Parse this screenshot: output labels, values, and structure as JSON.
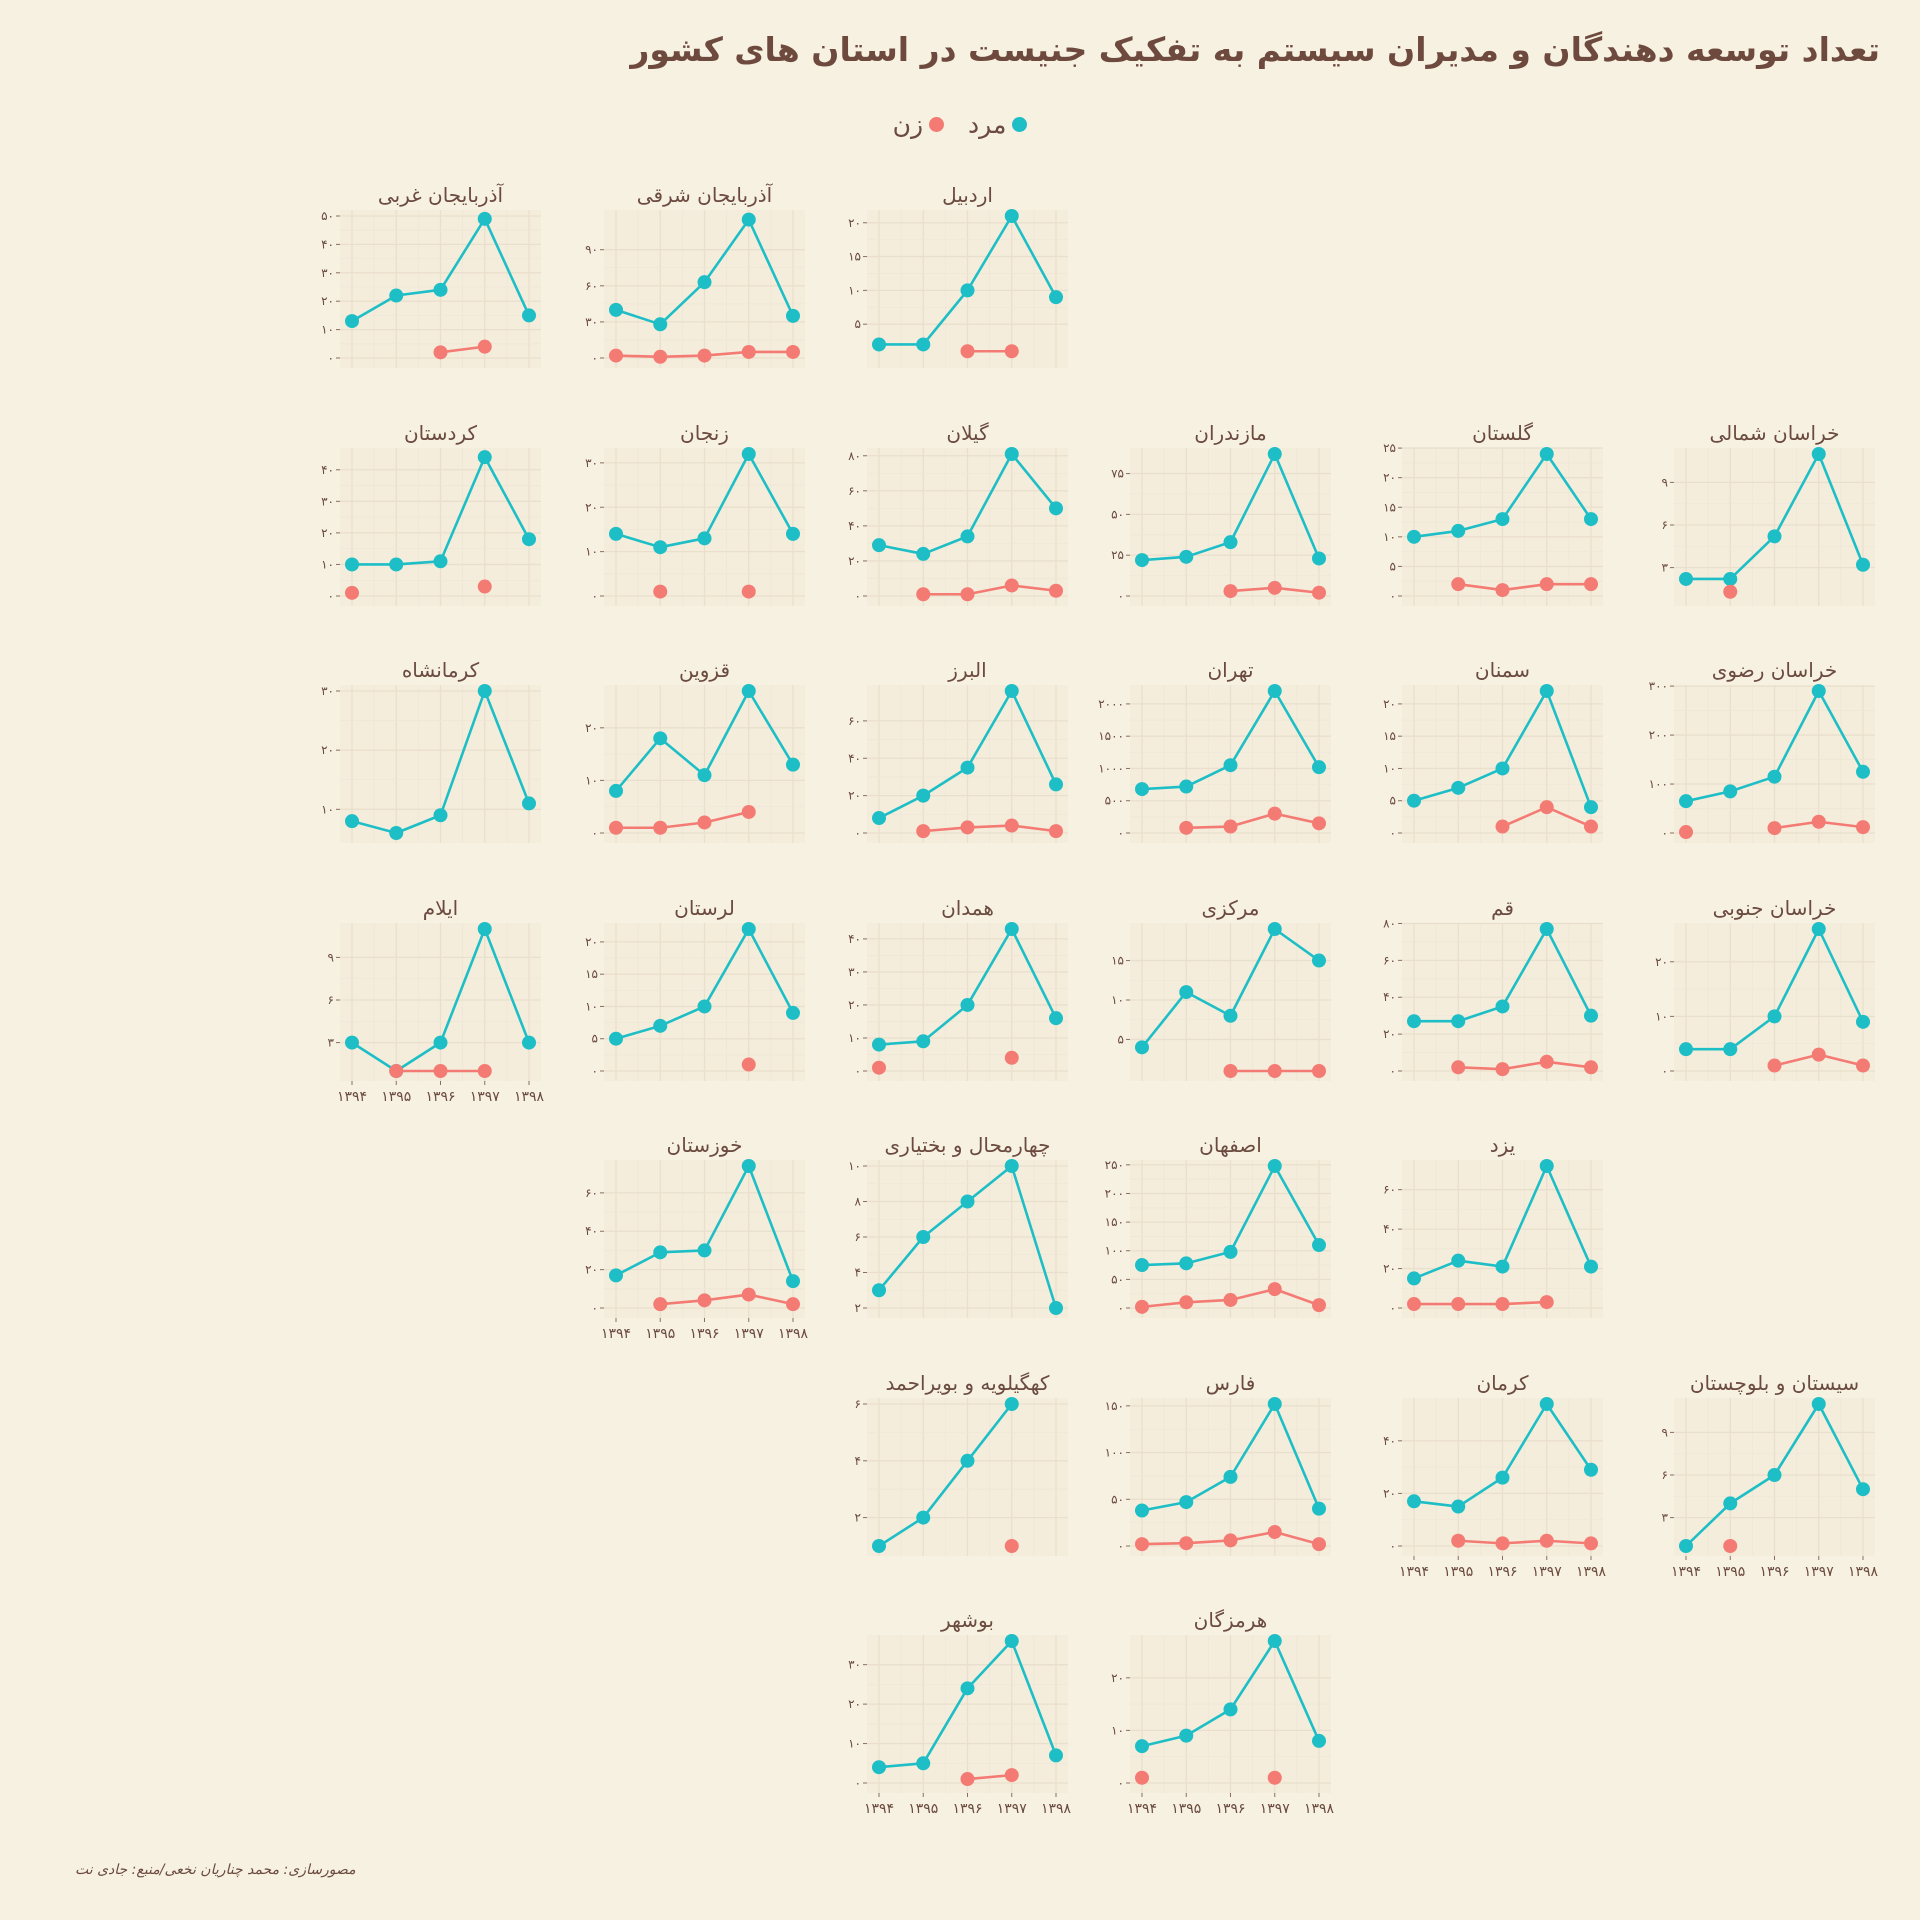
{
  "title": "تعداد توسعه دهندگان و مدیران سیستم به تفکیک جنیست در استان های کشور",
  "legend": {
    "male_label": "مرد",
    "female_label": "زن",
    "male_color": "#1ebec6",
    "female_color": "#f47b74"
  },
  "footer": "مصورسازی: محمد چناریان نخعی/منبع: جادی نت",
  "chart_data": {
    "type": "line",
    "years": [
      "۱۳۹۴",
      "۱۳۹۵",
      "۱۳۹۶",
      "۱۳۹۷",
      "۱۳۹۸"
    ],
    "panels": [
      {
        "name": "آذربایجان غربی",
        "yticks": [
          0,
          10,
          20,
          30,
          40,
          50
        ],
        "ylim": [
          0,
          50
        ],
        "male": [
          13,
          22,
          24,
          49,
          15
        ],
        "female": [
          null,
          null,
          2,
          4,
          null
        ]
      },
      {
        "name": "آذربایجان شرقی",
        "yticks": [
          0,
          30,
          60,
          90
        ],
        "ylim": [
          0,
          118
        ],
        "male": [
          40,
          28,
          63,
          115,
          35
        ],
        "female": [
          2,
          1,
          2,
          5,
          5
        ]
      },
      {
        "name": "اردبیل",
        "yticks": [
          5,
          10,
          15,
          20
        ],
        "ylim": [
          0,
          21
        ],
        "male": [
          2,
          2,
          10,
          21,
          9
        ],
        "female": [
          null,
          null,
          1,
          1,
          null
        ]
      },
      {
        "name": "کردستان",
        "yticks": [
          0,
          10,
          20,
          30,
          40
        ],
        "ylim": [
          0,
          45
        ],
        "male": [
          10,
          10,
          11,
          44,
          18
        ],
        "female": [
          1,
          null,
          null,
          3,
          null
        ]
      },
      {
        "name": "زنجان",
        "yticks": [
          0,
          10,
          20,
          30
        ],
        "ylim": [
          0,
          32
        ],
        "male": [
          14,
          11,
          13,
          32,
          14
        ],
        "female": [
          null,
          1,
          null,
          1,
          null
        ]
      },
      {
        "name": "گیلان",
        "yticks": [
          0,
          20,
          40,
          60,
          80
        ],
        "ylim": [
          0,
          81
        ],
        "male": [
          29,
          24,
          34,
          81,
          50
        ],
        "female": [
          null,
          1,
          1,
          6,
          3
        ]
      },
      {
        "name": "مازندران",
        "yticks": [
          0,
          25,
          50,
          75
        ],
        "ylim": [
          0,
          87
        ],
        "male": [
          22,
          24,
          33,
          87,
          23
        ],
        "female": [
          null,
          null,
          3,
          5,
          2
        ]
      },
      {
        "name": "گلستان",
        "yticks": [
          0,
          5,
          10,
          15,
          20,
          25
        ],
        "ylim": [
          0,
          24
        ],
        "male": [
          10,
          11,
          13,
          24,
          13
        ],
        "female": [
          null,
          2,
          1,
          2,
          2
        ]
      },
      {
        "name": "خراسان شمالی",
        "yticks": [
          3,
          6,
          9
        ],
        "ylim": [
          1,
          11
        ],
        "male": [
          2.2,
          2.2,
          5.2,
          11,
          3.2
        ],
        "female": [
          null,
          1.3,
          null,
          null,
          null
        ]
      },
      {
        "name": "کرمانشاه",
        "yticks": [
          10,
          20,
          30
        ],
        "ylim": [
          6,
          30
        ],
        "male": [
          8,
          6,
          9,
          30,
          11
        ],
        "female": []
      },
      {
        "name": "قزوین",
        "yticks": [
          0,
          10,
          20
        ],
        "ylim": [
          0,
          27
        ],
        "male": [
          8,
          18,
          11,
          27,
          13
        ],
        "female": [
          1,
          1,
          2,
          4,
          null
        ]
      },
      {
        "name": "البرز",
        "yticks": [
          0,
          20,
          40,
          60
        ],
        "ylim": [
          0,
          76
        ],
        "male": [
          8,
          20,
          35,
          76,
          26
        ],
        "female": [
          null,
          1,
          3,
          4,
          1
        ]
      },
      {
        "name": "تهران",
        "yticks": [
          0,
          500,
          1000,
          1500,
          2000
        ],
        "ylim": [
          0,
          2200
        ],
        "male": [
          680,
          720,
          1050,
          2200,
          1020
        ],
        "female": [
          null,
          80,
          100,
          300,
          150
        ]
      },
      {
        "name": "سمنان",
        "yticks": [
          0,
          5,
          10,
          15,
          20
        ],
        "ylim": [
          0,
          22
        ],
        "male": [
          5,
          7,
          10,
          22,
          4
        ],
        "female": [
          null,
          null,
          1,
          4,
          1
        ]
      },
      {
        "name": "خراسان رضوی",
        "yticks": [
          0,
          100,
          200,
          300
        ],
        "ylim": [
          0,
          290
        ],
        "male": [
          65,
          85,
          115,
          290,
          125
        ],
        "female": [
          2,
          null,
          10,
          23,
          12
        ]
      },
      {
        "name": "ایلام",
        "yticks": [
          3,
          6,
          9
        ],
        "ylim": [
          1,
          11
        ],
        "male": [
          3,
          1,
          3,
          11,
          3
        ],
        "female": [
          null,
          1,
          1,
          1,
          null
        ]
      },
      {
        "name": "لرستان",
        "yticks": [
          0,
          5,
          10,
          15,
          20
        ],
        "ylim": [
          0,
          22
        ],
        "male": [
          5,
          7,
          10,
          22,
          9
        ],
        "female": [
          null,
          null,
          null,
          1,
          null
        ]
      },
      {
        "name": "همدان",
        "yticks": [
          0,
          10,
          20,
          30,
          40
        ],
        "ylim": [
          0,
          43
        ],
        "male": [
          8,
          9,
          20,
          43,
          16
        ],
        "female": [
          1,
          null,
          null,
          4,
          null
        ]
      },
      {
        "name": "مرکزی",
        "yticks": [
          5,
          10,
          15
        ],
        "ylim": [
          1,
          19
        ],
        "male": [
          4,
          11,
          8,
          19,
          15
        ],
        "female": [
          null,
          null,
          1,
          1,
          1
        ]
      },
      {
        "name": "قم",
        "yticks": [
          0,
          20,
          40,
          60,
          80
        ],
        "ylim": [
          0,
          77
        ],
        "male": [
          27,
          27,
          35,
          77,
          30
        ],
        "female": [
          null,
          2,
          1,
          5,
          2
        ]
      },
      {
        "name": "خراسان جنوبی",
        "yticks": [
          0,
          10,
          20
        ],
        "ylim": [
          0,
          26
        ],
        "male": [
          4,
          4,
          10,
          26,
          9
        ],
        "female": [
          null,
          null,
          1,
          3,
          1
        ]
      },
      {
        "name": "خوزستان",
        "yticks": [
          0,
          20,
          40,
          60
        ],
        "ylim": [
          0,
          74
        ],
        "male": [
          17,
          29,
          30,
          74,
          14
        ],
        "female": [
          null,
          2,
          4,
          7,
          2
        ]
      },
      {
        "name": "چهارمحال و بختیاری",
        "yticks": [
          2,
          4,
          6,
          8,
          10
        ],
        "ylim": [
          2,
          10
        ],
        "male": [
          3,
          6,
          8,
          10,
          2
        ],
        "female": []
      },
      {
        "name": "اصفهان",
        "yticks": [
          0,
          50,
          100,
          150,
          200,
          250
        ],
        "ylim": [
          0,
          248
        ],
        "male": [
          75,
          78,
          98,
          248,
          110
        ],
        "female": [
          2,
          10,
          14,
          33,
          5
        ]
      },
      {
        "name": "یزد",
        "yticks": [
          0,
          20,
          40,
          60
        ],
        "ylim": [
          0,
          72
        ],
        "male": [
          15,
          24,
          21,
          72,
          21
        ],
        "female": [
          2,
          2,
          2,
          3,
          null
        ]
      },
      {
        "name": "کهگیلویه و بویراحمد",
        "yticks": [
          2,
          4,
          6
        ],
        "ylim": [
          1,
          6
        ],
        "male": [
          1,
          2,
          4,
          6,
          null
        ],
        "female": [
          null,
          null,
          null,
          1,
          null
        ]
      },
      {
        "name": "فارس",
        "yticks": [
          0,
          50,
          100,
          150
        ],
        "ylim": [
          0,
          152
        ],
        "male": [
          38,
          47,
          74,
          152,
          40
        ],
        "female": [
          2,
          3,
          6,
          15,
          2
        ]
      },
      {
        "name": "کرمان",
        "yticks": [
          0,
          20,
          40
        ],
        "ylim": [
          0,
          54
        ],
        "male": [
          17,
          15,
          26,
          54,
          29
        ],
        "female": [
          null,
          2,
          1,
          2,
          1
        ]
      },
      {
        "name": "سیستان و بلوچستان",
        "yticks": [
          3,
          6,
          9
        ],
        "ylim": [
          1,
          11
        ],
        "male": [
          1,
          4,
          6,
          11,
          5
        ],
        "female": [
          null,
          1,
          null,
          null,
          null
        ]
      },
      {
        "name": "بوشهر",
        "yticks": [
          0,
          10,
          20,
          30
        ],
        "ylim": [
          0,
          36
        ],
        "male": [
          4,
          5,
          24,
          36,
          7
        ],
        "female": [
          null,
          null,
          1,
          2,
          null
        ]
      },
      {
        "name": "هرمزگان",
        "yticks": [
          0,
          10,
          20
        ],
        "ylim": [
          0,
          27
        ],
        "male": [
          7,
          9,
          14,
          27,
          8
        ],
        "female": [
          1,
          null,
          null,
          1,
          null
        ]
      }
    ]
  }
}
